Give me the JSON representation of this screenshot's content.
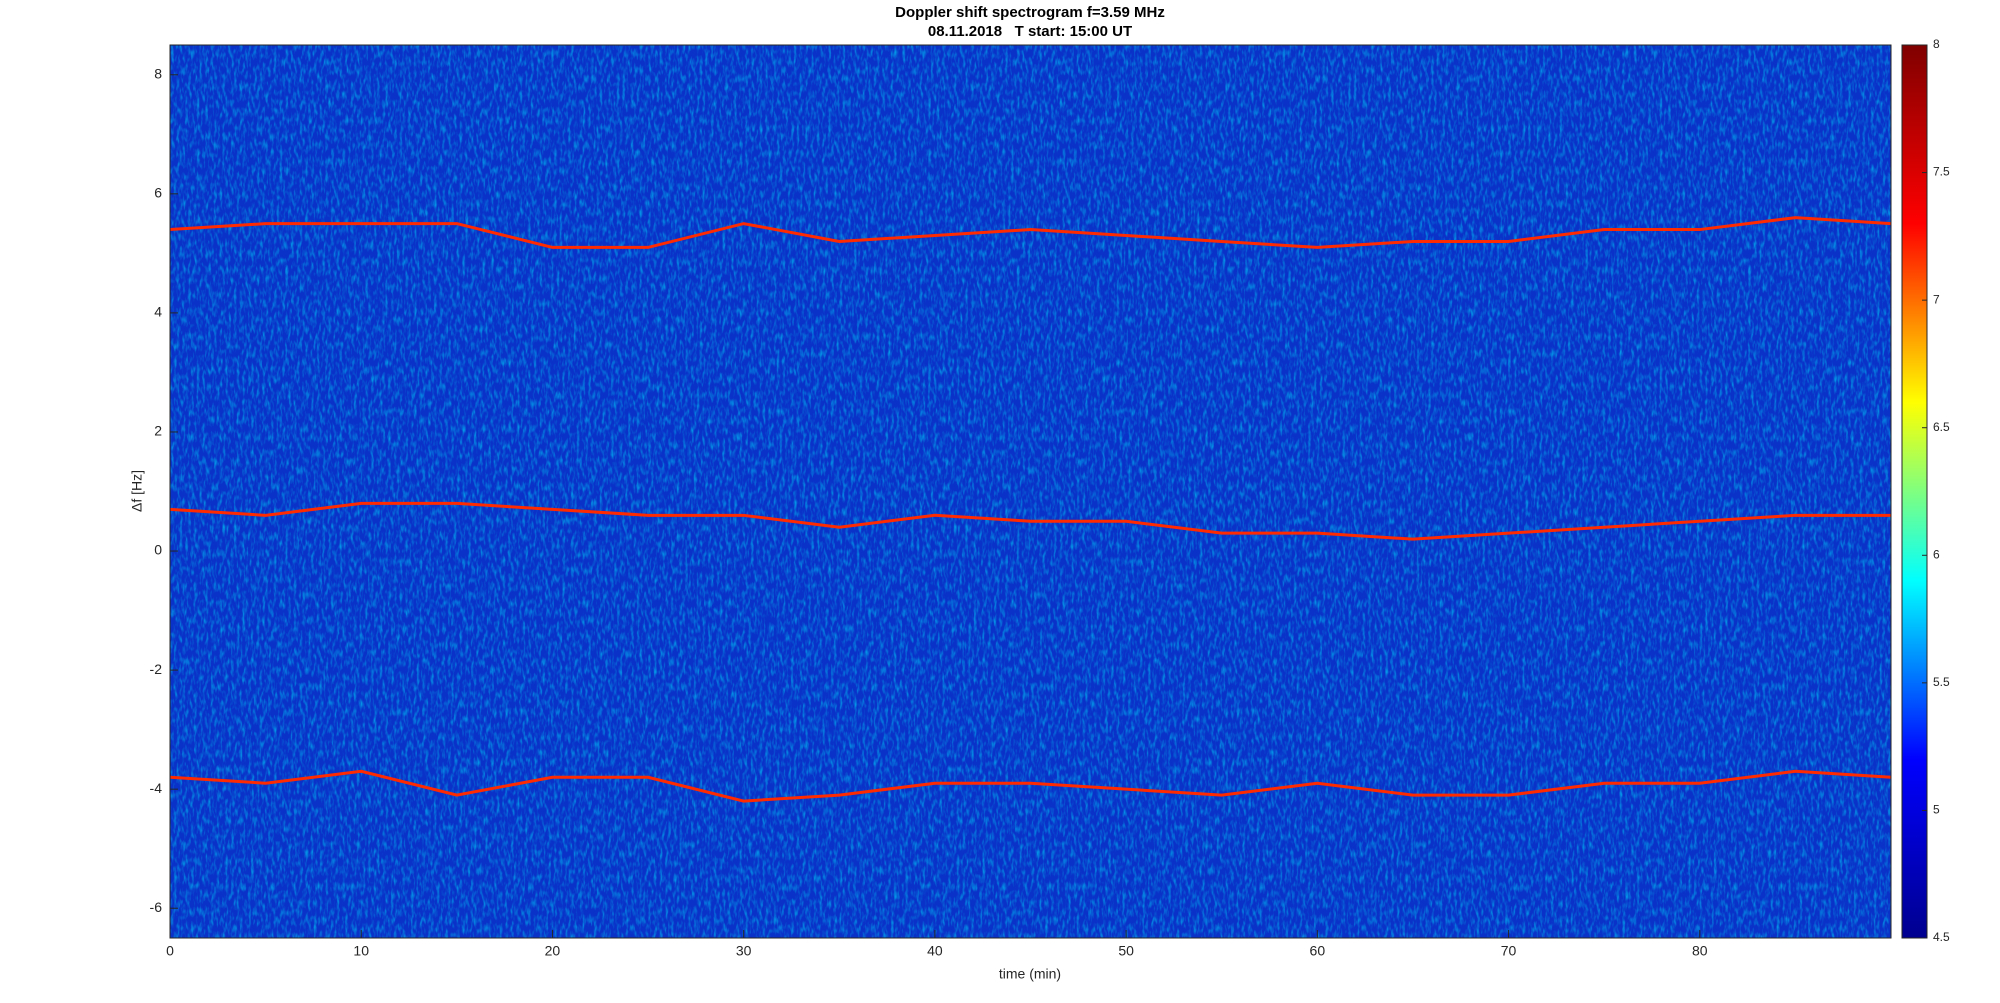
{
  "chart_data": {
    "type": "line",
    "title": "Doppler shift spectrogram f=3.59 MHz",
    "subtitle": "08.11.2018   T start: 15:00 UT",
    "x_label": "time (min)",
    "y_label": "Δf [Hz]",
    "x": [
      0,
      5,
      10,
      15,
      20,
      25,
      30,
      35,
      40,
      45,
      50,
      55,
      60,
      65,
      70,
      75,
      80,
      85,
      90
    ],
    "series": [
      {
        "color": "#ff2a00",
        "values": [
          5.4,
          5.5,
          5.5,
          5.5,
          5.1,
          5.1,
          5.5,
          5.2,
          5.3,
          5.4,
          5.3,
          5.2,
          5.1,
          5.2,
          5.2,
          5.4,
          5.4,
          5.6,
          5.5
        ]
      },
      {
        "color": "#ff2a00",
        "values": [
          0.7,
          0.6,
          0.8,
          0.8,
          0.7,
          0.6,
          0.6,
          0.4,
          0.6,
          0.5,
          0.5,
          0.3,
          0.3,
          0.2,
          0.3,
          0.4,
          0.5,
          0.6,
          0.6
        ]
      },
      {
        "color": "#ff2a00",
        "values": [
          -3.8,
          -3.9,
          -3.7,
          -4.1,
          -3.8,
          -3.8,
          -4.2,
          -4.1,
          -3.9,
          -3.9,
          -4.0,
          -4.1,
          -3.9,
          -4.1,
          -4.1,
          -3.9,
          -3.9,
          -3.7,
          -3.8
        ]
      }
    ],
    "xlim": [
      0,
      90
    ],
    "xticks": [
      0,
      10,
      20,
      30,
      40,
      50,
      60,
      70,
      80
    ],
    "ylim": [
      -6.5,
      8.5
    ],
    "yticks": [
      -6,
      -4,
      -2,
      0,
      2,
      4,
      6,
      8
    ],
    "colorbar": {
      "lim": [
        4.5,
        8
      ],
      "ticks": [
        4.5,
        5,
        5.5,
        6,
        6.5,
        7,
        7.5,
        8
      ],
      "colormap": [
        "#00008f",
        "#0000ff",
        "#00ffff",
        "#ffff00",
        "#ff0000",
        "#800000"
      ]
    }
  }
}
